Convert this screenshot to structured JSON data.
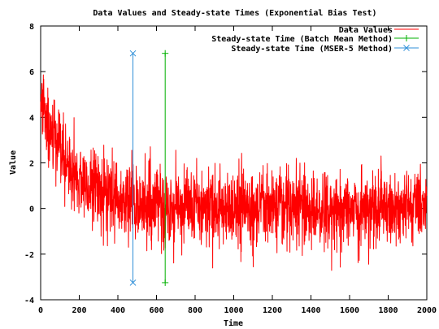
{
  "chart_data": {
    "type": "line",
    "title": "Data Values and Steady-state Times (Exponential Bias Test)",
    "xlabel": "Time",
    "ylabel": "Value",
    "xlim": [
      0,
      2000
    ],
    "ylim": [
      -4,
      8
    ],
    "xticks": [
      0,
      200,
      400,
      600,
      800,
      1000,
      1200,
      1400,
      1600,
      1800,
      2000
    ],
    "yticks": [
      -4,
      -2,
      0,
      2,
      4,
      6,
      8
    ],
    "grid": false,
    "legend_position": "top-right",
    "series": [
      {
        "name": "Data Values",
        "color": "#ff0000",
        "model": "exponential decay with noise",
        "n_points": 2000,
        "approx_start_mean": 4.5,
        "approx_decay_time": 160,
        "approx_noise_sd": 0.85,
        "approx_range": [
          -3.3,
          6.8
        ]
      },
      {
        "name": "Steady-state Time (Batch Mean Method)",
        "color": "#00b000",
        "marker": "+",
        "x": [
          645,
          645
        ],
        "y": [
          -3.25,
          6.8
        ]
      },
      {
        "name": "Steady-state Time (MSER-5 Method)",
        "color": "#2f8fd8",
        "marker": "x",
        "x": [
          478,
          478
        ],
        "y": [
          -3.25,
          6.8
        ]
      }
    ]
  }
}
